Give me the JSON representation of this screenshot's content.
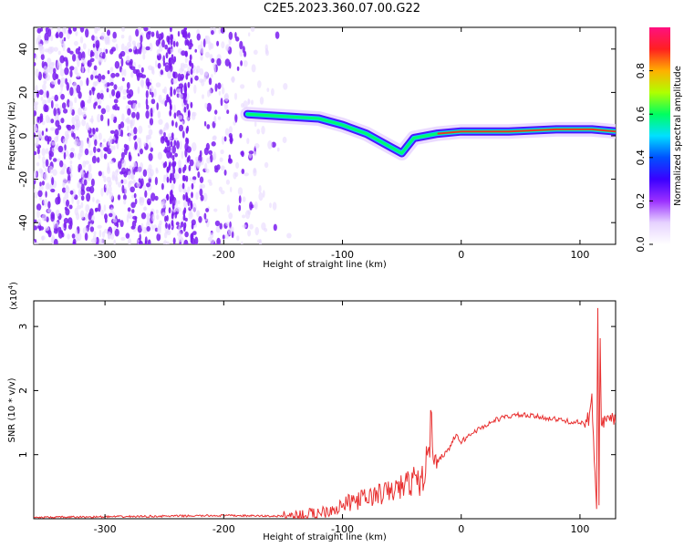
{
  "title": "C2E5.2023.360.07.00.G22",
  "colors": {
    "spectrogram_low": "#e8d8ff",
    "spectrogram_mid": "#7a1cf0",
    "snr_line": "#e83030",
    "colorbar": [
      "#ffffff",
      "#e6d2ff",
      "#9b30ff",
      "#3a00ff",
      "#0050ff",
      "#00e0ff",
      "#00ff60",
      "#b0ff00",
      "#ffb000",
      "#ff2020",
      "#ff1080"
    ]
  },
  "chart_data": [
    {
      "type": "heatmap",
      "xlabel": "Height of straight line (km)",
      "ylabel": "Frequency (Hz)",
      "xlim": [
        -360,
        130
      ],
      "ylim": [
        -50,
        50
      ],
      "xticks": [
        "-300",
        "-200",
        "-100",
        "0",
        "100"
      ],
      "xtick_values": [
        -300,
        -200,
        -100,
        0,
        100
      ],
      "yticks": [
        "40",
        "20",
        "0",
        "-20",
        "-40"
      ],
      "ytick_values": [
        40,
        20,
        0,
        -20,
        -40
      ],
      "colorbar": {
        "label": "Normalized spectral amplitude",
        "range": [
          0.0,
          1.0
        ],
        "ticks": [
          "0.0",
          "0.2",
          "0.4",
          "0.6",
          "0.8"
        ],
        "tick_values": [
          0.0,
          0.2,
          0.4,
          0.6,
          0.8
        ]
      },
      "noise_region_x": [
        -360,
        -140
      ],
      "signal_track": [
        {
          "x": -180,
          "y": 10
        },
        {
          "x": -150,
          "y": 9
        },
        {
          "x": -120,
          "y": 8
        },
        {
          "x": -100,
          "y": 5
        },
        {
          "x": -80,
          "y": 1
        },
        {
          "x": -60,
          "y": -5
        },
        {
          "x": -50,
          "y": -8
        },
        {
          "x": -40,
          "y": -1
        },
        {
          "x": -20,
          "y": 1
        },
        {
          "x": 0,
          "y": 2
        },
        {
          "x": 40,
          "y": 2
        },
        {
          "x": 80,
          "y": 3
        },
        {
          "x": 110,
          "y": 3
        },
        {
          "x": 130,
          "y": 2
        }
      ]
    },
    {
      "type": "line",
      "xlabel": "Height of straight line (km)",
      "ylabel": "SNR (10 * v/v)",
      "y_scale_label": "(x10",
      "y_scale_exp": "4",
      "y_scale_close": ")",
      "xlim": [
        -360,
        130
      ],
      "ylim": [
        0,
        3.4
      ],
      "xticks": [
        "-300",
        "-200",
        "-100",
        "0",
        "100"
      ],
      "xtick_values": [
        -300,
        -200,
        -100,
        0,
        100
      ],
      "yticks": [
        "3",
        "2",
        "1"
      ],
      "ytick_values": [
        3,
        2,
        1
      ],
      "series": [
        {
          "x": [
            -360,
            -300,
            -250,
            -200,
            -150,
            -130,
            -120,
            -110,
            -100,
            -90,
            -80,
            -70,
            -60,
            -50,
            -45,
            -40,
            -35,
            -30,
            -28,
            -25,
            -20,
            -15,
            -10,
            -5,
            0,
            10,
            20,
            30,
            40,
            50,
            60,
            70,
            80,
            90,
            100,
            105,
            108,
            110,
            112,
            114,
            115,
            116,
            117,
            118,
            120,
            125,
            130
          ],
          "y": [
            0.02,
            0.03,
            0.04,
            0.05,
            0.04,
            0.06,
            0.1,
            0.15,
            0.2,
            0.28,
            0.32,
            0.38,
            0.42,
            0.5,
            0.55,
            0.6,
            0.55,
            0.75,
            1.1,
            1.4,
            0.9,
            1.0,
            1.1,
            1.3,
            1.2,
            1.35,
            1.45,
            1.55,
            1.6,
            1.62,
            1.6,
            1.58,
            1.55,
            1.52,
            1.5,
            1.45,
            1.6,
            2.0,
            1.0,
            0.3,
            3.3,
            0.2,
            2.8,
            1.5,
            1.5,
            1.52,
            1.5
          ]
        }
      ]
    }
  ]
}
